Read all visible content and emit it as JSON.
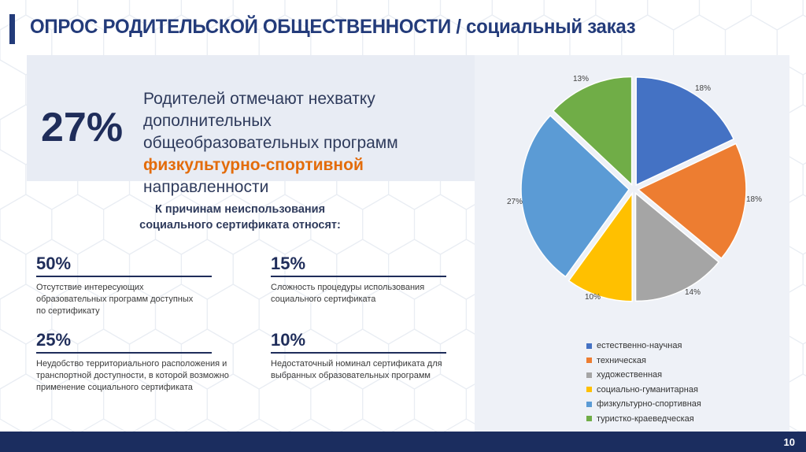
{
  "header": {
    "title": "ОПРОС РОДИТЕЛЬСКОЙ ОБЩЕСТВЕННОСТИ / социальный заказ"
  },
  "highlight": {
    "percent": "27%",
    "line1": "Родителей отмечают нехватку дополнительных",
    "line2": "общеобразовательных программ",
    "accent": "физкультурно-спортивной",
    "line3_rest": " направленности"
  },
  "reasons": {
    "heading_line1": "К причинам неиспользования",
    "heading_line2": "социального сертификата относят:",
    "items": [
      {
        "percent": "50%",
        "desc_lines": [
          "Отсутствие интересующих",
          "образовательных программ доступных",
          "по сертификату"
        ]
      },
      {
        "percent": "15%",
        "desc_lines": [
          "Сложность процедуры использования",
          "социального сертификата"
        ]
      },
      {
        "percent": "25%",
        "desc_lines": [
          "Неудобство территориального расположения и",
          "транспортной доступности, в которой возможно",
          "применение социального сертификата"
        ]
      },
      {
        "percent": "10%",
        "desc_lines": [
          "Недостаточный номинал сертификата для",
          "выбранных образовательных программ"
        ]
      }
    ]
  },
  "chart_data": {
    "type": "pie",
    "categories": [
      "естественно-научная",
      "техническая",
      "художественная",
      "социально-гуманитарная",
      "физкультурно-спортивная",
      "туристко-краеведческая"
    ],
    "values": [
      18,
      18,
      14,
      10,
      27,
      13
    ],
    "labels": [
      "18%",
      "18%",
      "14%",
      "10%",
      "27%",
      "13%"
    ],
    "colors": [
      "#4472c4",
      "#ed7d31",
      "#a5a5a5",
      "#ffc000",
      "#5b9bd5",
      "#70ad47"
    ],
    "legend_position": "bottom"
  },
  "footer": {
    "page_number": "10"
  }
}
